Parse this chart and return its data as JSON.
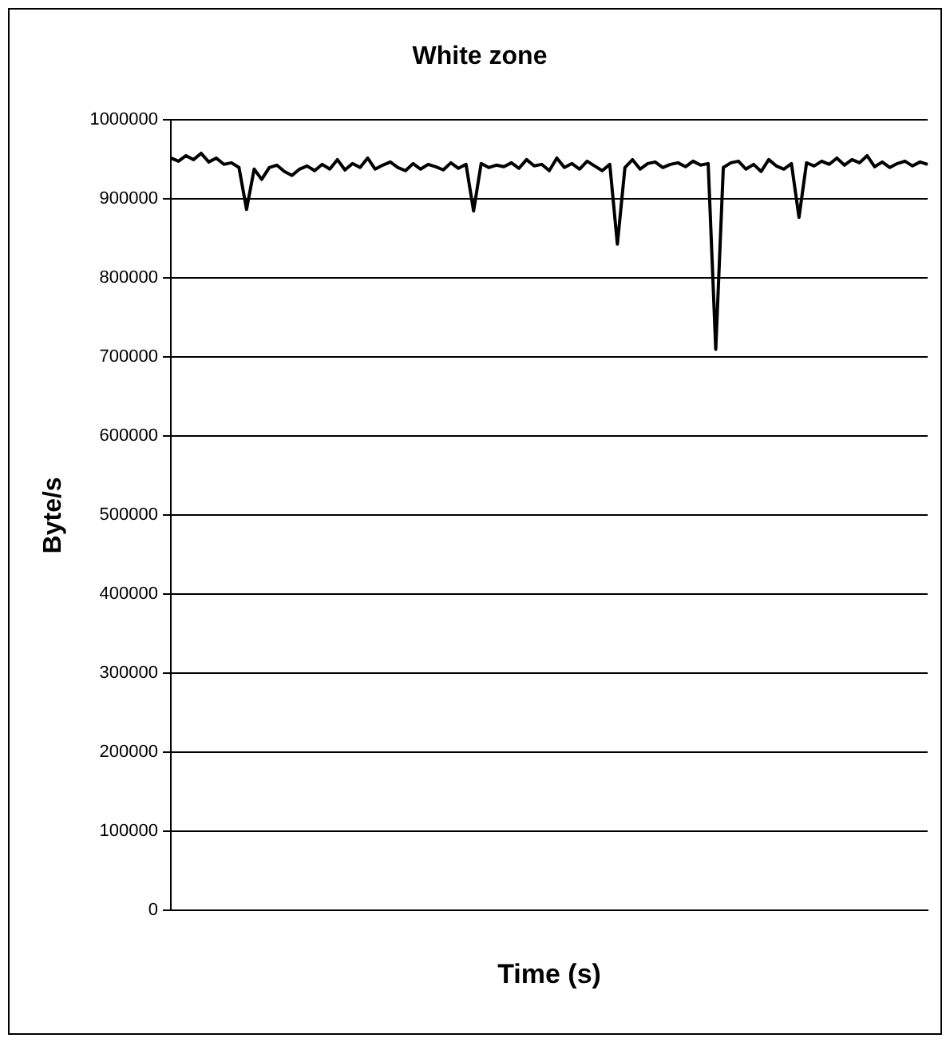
{
  "chart_data": {
    "type": "line",
    "title": "White zone",
    "xlabel": "Time (s)",
    "ylabel": "Byte/s",
    "categories": [
      null,
      null,
      null,
      null,
      null,
      null,
      null,
      null,
      null,
      null,
      null,
      null,
      null,
      null,
      null,
      null,
      null,
      null,
      null,
      null,
      null,
      null,
      null,
      null,
      null,
      null,
      null,
      null,
      null,
      null,
      null,
      null,
      null,
      null,
      null,
      null,
      null,
      null,
      null,
      null,
      null,
      null,
      null,
      null,
      null,
      null,
      null,
      null,
      null,
      null,
      null,
      null,
      null,
      null,
      null,
      null,
      null,
      null,
      null,
      null,
      null,
      null,
      null,
      null,
      null,
      null,
      null,
      null,
      null,
      null,
      null,
      null,
      null,
      null,
      null,
      null,
      null,
      null,
      null,
      null,
      null,
      null,
      null,
      null,
      null,
      null,
      null,
      null,
      null,
      null,
      null,
      null,
      null,
      null,
      null,
      null,
      null,
      null,
      null,
      null,
      null
    ],
    "series": [
      {
        "color": "#000000",
        "values": [
          952000,
          948000,
          955000,
          950000,
          958000,
          947000,
          952000,
          944000,
          946000,
          940000,
          887000,
          938000,
          925000,
          940000,
          943000,
          935000,
          930000,
          938000,
          942000,
          936000,
          944000,
          938000,
          950000,
          937000,
          945000,
          940000,
          952000,
          938000,
          943000,
          947000,
          940000,
          936000,
          945000,
          938000,
          944000,
          941000,
          937000,
          946000,
          939000,
          944000,
          885000,
          945000,
          940000,
          943000,
          941000,
          946000,
          939000,
          950000,
          942000,
          944000,
          936000,
          952000,
          940000,
          945000,
          938000,
          948000,
          942000,
          936000,
          944000,
          843000,
          940000,
          950000,
          938000,
          945000,
          947000,
          940000,
          944000,
          946000,
          941000,
          948000,
          943000,
          945000,
          710000,
          940000,
          946000,
          948000,
          938000,
          944000,
          935000,
          950000,
          942000,
          938000,
          945000,
          877000,
          946000,
          942000,
          948000,
          944000,
          952000,
          943000,
          950000,
          946000,
          955000,
          941000,
          947000,
          940000,
          945000,
          948000,
          942000,
          947000,
          944000
        ]
      }
    ],
    "ylim": [
      0,
      1000000
    ],
    "yticks": [
      0,
      100000,
      200000,
      300000,
      400000,
      500000,
      600000,
      700000,
      800000,
      900000,
      1000000
    ],
    "grid": "y",
    "legend": false,
    "marker": "none",
    "line_style": "solid"
  }
}
